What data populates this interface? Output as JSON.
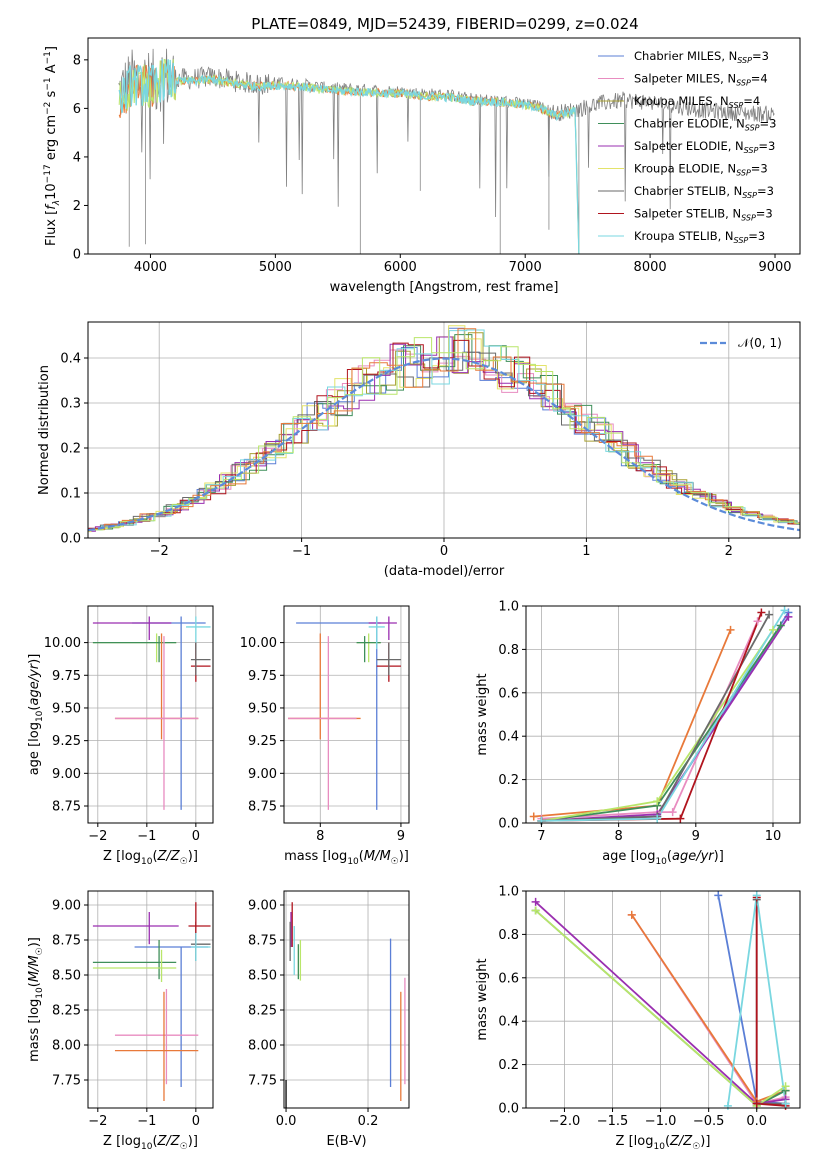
{
  "figure_title": "PLATE=0849, MJD=52439, FIBERID=0299, z=0.024",
  "colors": {
    "Chabrier MILES": "#5b7fd6",
    "Salpeter MILES": "#e88cc0",
    "Kroupa MILES": "#a8a032",
    "Chabrier ELODIE": "#3f8f5a",
    "Salpeter ELODIE": "#9a2fb0",
    "Kroupa ELODIE": "#e3e36a",
    "Chabrier STELIB": "#6a6a6a",
    "Salpeter STELIB": "#b0141e",
    "Kroupa STELIB": "#7ad7e0",
    "orange": "#e8793a",
    "lightgreen": "#b9e66a",
    "data_gray": "#808080",
    "gauss": "#5b8bd9"
  },
  "chart_data": [
    {
      "id": "spectrum",
      "type": "line",
      "title": "PLATE=0849, MJD=52439, FIBERID=0299, z=0.024",
      "xlabel": "wavelength [Angstrom, rest frame]",
      "ylabel": "Flux [f_λ10^-17 erg cm^-2 s^-1 A^-1]",
      "xlim": [
        3500,
        9200
      ],
      "ylim": [
        0,
        8.9
      ],
      "xticks": [
        4000,
        5000,
        6000,
        7000,
        8000,
        9000
      ],
      "yticks": [
        0,
        2,
        4,
        6,
        8
      ],
      "legend_position": "top-right",
      "legend": [
        {
          "label": "Chabrier MILES, N_SSP=3",
          "main": "Chabrier MILES, N",
          "sub": "SSP",
          "tail": "=3",
          "color": "#5b7fd6"
        },
        {
          "label": "Salpeter MILES, N_SSP=4",
          "main": "Salpeter MILES, N",
          "sub": "SSP",
          "tail": "=4",
          "color": "#e88cc0"
        },
        {
          "label": "Kroupa MILES, N_SSP=4",
          "main": "Kroupa MILES, N",
          "sub": "SSP",
          "tail": "=4",
          "color": "#a8a032"
        },
        {
          "label": "Chabrier ELODIE, N_SSP=3",
          "main": "Chabrier ELODIE, N",
          "sub": "SSP",
          "tail": "=3",
          "color": "#3f8f5a"
        },
        {
          "label": "Salpeter ELODIE, N_SSP=3",
          "main": "Salpeter ELODIE, N",
          "sub": "SSP",
          "tail": "=3",
          "color": "#9a2fb0"
        },
        {
          "label": "Kroupa ELODIE, N_SSP=3",
          "main": "Kroupa ELODIE, N",
          "sub": "SSP",
          "tail": "=3",
          "color": "#e3e36a"
        },
        {
          "label": "Chabrier STELIB, N_SSP=3",
          "main": "Chabrier STELIB, N",
          "sub": "SSP",
          "tail": "=3",
          "color": "#6a6a6a"
        },
        {
          "label": "Salpeter STELIB, N_SSP=3",
          "main": "Salpeter STELIB, N",
          "sub": "SSP",
          "tail": "=3",
          "color": "#b0141e"
        },
        {
          "label": "Kroupa STELIB, N_SSP=3",
          "main": "Kroupa STELIB, N",
          "sub": "SSP",
          "tail": "=3",
          "color": "#7ad7e0"
        }
      ],
      "series": [
        {
          "role": "data",
          "x": [
            3750,
            3850,
            4000,
            4100,
            4300,
            4500,
            4700,
            4861,
            5000,
            5200,
            5400,
            5600,
            5800,
            6000,
            6200,
            6400,
            6563,
            6700,
            6900,
            7100,
            7250,
            7400,
            7600,
            7800,
            8000,
            8200,
            8400,
            8600,
            8800,
            9000
          ],
          "y": [
            6.6,
            7.1,
            7.0,
            7.3,
            7.2,
            7.3,
            7.1,
            7.0,
            7.05,
            7.0,
            6.85,
            6.8,
            6.75,
            6.7,
            6.6,
            6.55,
            6.4,
            6.35,
            6.25,
            6.1,
            5.8,
            5.95,
            6.2,
            6.35,
            6.25,
            6.1,
            5.95,
            5.85,
            5.8,
            5.75
          ]
        },
        {
          "role": "model",
          "x": [
            3750,
            3850,
            4000,
            4100,
            4300,
            4500,
            4700,
            4861,
            5000,
            5200,
            5400,
            5600,
            5800,
            6000,
            6200,
            6400,
            6563,
            6700,
            6900,
            7100,
            7250,
            7400,
            7430
          ],
          "y": [
            6.3,
            7.0,
            6.9,
            7.2,
            7.1,
            7.2,
            7.0,
            6.9,
            6.95,
            6.9,
            6.75,
            6.7,
            6.65,
            6.6,
            6.5,
            6.45,
            6.3,
            6.3,
            6.2,
            6.05,
            5.7,
            5.9,
            0
          ]
        }
      ]
    },
    {
      "id": "residuals",
      "type": "line",
      "xlabel": "(data-model)/error",
      "ylabel": "Normed distribution",
      "xlim": [
        -2.5,
        2.5
      ],
      "ylim": [
        0,
        0.48
      ],
      "xticks": [
        -2,
        -1,
        0,
        1,
        2
      ],
      "yticks": [
        0.0,
        0.1,
        0.2,
        0.3,
        0.4
      ],
      "grid": true,
      "legend_position": "top-right",
      "legend_label": "𝒩(0, 1)",
      "series": [
        {
          "name": "𝒩(0, 1)",
          "kind": "gaussian",
          "mean": 0,
          "sigma": 1,
          "style": "dashed"
        }
      ]
    },
    {
      "id": "age_vs_Z",
      "type": "scatter",
      "xlabel": "Z [log10(Z/Z☉)]",
      "ylabel": "age [log10(age/yr)]",
      "xlim": [
        -2.2,
        0.35
      ],
      "ylim": [
        8.62,
        10.28
      ],
      "xticks": [
        -2,
        -1,
        0
      ],
      "yticks": [
        8.75,
        9.0,
        9.25,
        9.5,
        9.75,
        10.0
      ],
      "grid": true,
      "errorbars": [
        {
          "color": "#5b7fd6",
          "x": -0.3,
          "xmin": -1.3,
          "xmax": 0.2,
          "y": 10.15,
          "ymin": 8.72,
          "ymax": 10.2
        },
        {
          "color": "#9a2fb0",
          "x": -0.95,
          "xmin": -2.1,
          "xmax": -0.5,
          "y": 10.15,
          "ymin": 10.02,
          "ymax": 10.2
        },
        {
          "color": "#b9e66a",
          "x": -0.8,
          "xmin": -2.1,
          "xmax": -0.4,
          "y": 10.0,
          "ymin": 9.85,
          "ymax": 10.07
        },
        {
          "color": "#3f8f5a",
          "x": -0.75,
          "xmin": -2.1,
          "xmax": -0.4,
          "y": 10.0,
          "ymin": 9.85,
          "ymax": 10.05
        },
        {
          "color": "#e8793a",
          "x": -0.7,
          "xmin": -1.65,
          "xmax": 0.05,
          "y": 9.42,
          "ymin": 9.26,
          "ymax": 10.07
        },
        {
          "color": "#e88cc0",
          "x": -0.65,
          "xmin": -1.65,
          "xmax": 0.05,
          "y": 9.42,
          "ymin": 8.72,
          "ymax": 10.05
        },
        {
          "color": "#7ad7e0",
          "x": 0.0,
          "xmin": -0.2,
          "xmax": 0.3,
          "y": 10.12,
          "ymin": 9.95,
          "ymax": 10.2
        },
        {
          "color": "#b0141e",
          "x": 0.0,
          "xmin": -0.1,
          "xmax": 0.3,
          "y": 9.82,
          "ymin": 9.7,
          "ymax": 10.0
        },
        {
          "color": "#6a6a6a",
          "x": 0.0,
          "xmin": -0.1,
          "xmax": 0.3,
          "y": 9.87,
          "ymin": 9.75,
          "ymax": 10.0
        }
      ]
    },
    {
      "id": "age_vs_mass",
      "type": "scatter",
      "xlabel": "mass [log10(M/M☉)]",
      "ylabel": "",
      "xlim": [
        7.55,
        9.1
      ],
      "ylim": [
        8.62,
        10.28
      ],
      "xticks": [
        8,
        9
      ],
      "yticks": [
        8.75,
        9.0,
        9.25,
        9.5,
        9.75,
        10.0
      ],
      "grid": true,
      "errorbars": [
        {
          "color": "#5b7fd6",
          "x": 8.7,
          "xmin": 7.7,
          "xmax": 8.75,
          "y": 10.15,
          "ymin": 8.72,
          "ymax": 10.2
        },
        {
          "color": "#9a2fb0",
          "x": 8.85,
          "xmin": 8.6,
          "xmax": 8.95,
          "y": 10.15,
          "ymin": 10.02,
          "ymax": 10.2
        },
        {
          "color": "#b9e66a",
          "x": 8.6,
          "xmin": 8.45,
          "xmax": 8.75,
          "y": 10.0,
          "ymin": 9.85,
          "ymax": 10.07
        },
        {
          "color": "#3f8f5a",
          "x": 8.55,
          "xmin": 8.45,
          "xmax": 8.75,
          "y": 10.0,
          "ymin": 9.85,
          "ymax": 10.05
        },
        {
          "color": "#e8793a",
          "x": 8.0,
          "xmin": 7.6,
          "xmax": 8.5,
          "y": 9.42,
          "ymin": 9.26,
          "ymax": 10.07
        },
        {
          "color": "#e88cc0",
          "x": 8.1,
          "xmin": 7.6,
          "xmax": 8.45,
          "y": 9.42,
          "ymin": 8.72,
          "ymax": 10.05
        },
        {
          "color": "#7ad7e0",
          "x": 8.7,
          "xmin": 8.6,
          "xmax": 8.8,
          "y": 10.12,
          "ymin": 9.95,
          "ymax": 10.2
        },
        {
          "color": "#b0141e",
          "x": 8.85,
          "xmin": 8.7,
          "xmax": 9.0,
          "y": 9.82,
          "ymin": 9.7,
          "ymax": 10.0
        },
        {
          "color": "#6a6a6a",
          "x": 8.85,
          "xmin": 8.7,
          "xmax": 9.0,
          "y": 9.87,
          "ymin": 9.75,
          "ymax": 10.0
        }
      ]
    },
    {
      "id": "massweight_vs_age",
      "type": "line",
      "xlabel": "age [log10(age/yr)]",
      "ylabel": "mass weight",
      "xlim": [
        6.8,
        10.35
      ],
      "ylim": [
        0,
        1.0
      ],
      "xticks": [
        7,
        8,
        9,
        10
      ],
      "yticks": [
        0.0,
        0.2,
        0.4,
        0.6,
        0.8,
        1.0
      ],
      "grid": true,
      "series": [
        {
          "color": "#5b7fd6",
          "x": [
            7.0,
            8.5,
            10.2
          ],
          "y": [
            0.01,
            0.03,
            0.97
          ]
        },
        {
          "color": "#e88cc0",
          "x": [
            7.0,
            8.5,
            8.7,
            9.8
          ],
          "y": [
            0.02,
            0.05,
            0.05,
            0.93
          ]
        },
        {
          "color": "#e8793a",
          "x": [
            6.9,
            8.5,
            9.45
          ],
          "y": [
            0.03,
            0.08,
            0.89
          ]
        },
        {
          "color": "#3f8f5a",
          "x": [
            7.0,
            8.5,
            10.1
          ],
          "y": [
            0.01,
            0.08,
            0.91
          ]
        },
        {
          "color": "#9a2fb0",
          "x": [
            7.0,
            8.5,
            10.2
          ],
          "y": [
            0.01,
            0.04,
            0.95
          ]
        },
        {
          "color": "#b9e66a",
          "x": [
            7.0,
            8.5,
            10.0
          ],
          "y": [
            0.01,
            0.1,
            0.89
          ]
        },
        {
          "color": "#6a6a6a",
          "x": [
            7.0,
            8.5,
            9.95
          ],
          "y": [
            0.01,
            0.03,
            0.96
          ]
        },
        {
          "color": "#b0141e",
          "x": [
            7.0,
            8.8,
            9.85
          ],
          "y": [
            0.01,
            0.02,
            0.97
          ]
        },
        {
          "color": "#7ad7e0",
          "x": [
            7.0,
            8.5,
            10.15
          ],
          "y": [
            0.01,
            0.02,
            0.98
          ]
        }
      ]
    },
    {
      "id": "mass_vs_Z",
      "type": "scatter",
      "xlabel": "Z [log10(Z/Z☉)]",
      "ylabel": "mass [log10(M/M☉)]",
      "xlim": [
        -2.2,
        0.35
      ],
      "ylim": [
        7.55,
        9.1
      ],
      "xticks": [
        -2,
        -1,
        0
      ],
      "yticks": [
        7.75,
        8.0,
        8.25,
        8.5,
        8.75,
        9.0
      ],
      "grid": true,
      "errorbars": [
        {
          "color": "#9a2fb0",
          "x": -0.95,
          "xmin": -2.1,
          "xmax": -0.35,
          "y": 8.85,
          "ymin": 8.72,
          "ymax": 8.95
        },
        {
          "color": "#6a6a6a",
          "x": 0.0,
          "xmin": -0.1,
          "xmax": 0.3,
          "y": 8.72,
          "ymin": 8.6,
          "ymax": 8.88
        },
        {
          "color": "#5b7fd6",
          "x": -0.3,
          "xmin": -1.25,
          "xmax": 0.25,
          "y": 8.7,
          "ymin": 7.7,
          "ymax": 8.7
        },
        {
          "color": "#3f8f5a",
          "x": -0.75,
          "xmin": -2.1,
          "xmax": -0.4,
          "y": 8.59,
          "ymin": 8.47,
          "ymax": 8.75
        },
        {
          "color": "#b9e66a",
          "x": -0.7,
          "xmin": -2.1,
          "xmax": -0.4,
          "y": 8.55,
          "ymin": 8.45,
          "ymax": 8.68
        },
        {
          "color": "#b0141e",
          "x": 0.0,
          "xmin": -0.15,
          "xmax": 0.3,
          "y": 8.85,
          "ymin": 8.7,
          "ymax": 9.02
        },
        {
          "color": "#7ad7e0",
          "x": 0.0,
          "xmin": -0.1,
          "xmax": 0.3,
          "y": 8.7,
          "ymin": 8.6,
          "ymax": 8.8
        },
        {
          "color": "#e88cc0",
          "x": -0.6,
          "xmin": -1.65,
          "xmax": 0.05,
          "y": 8.07,
          "ymin": 7.72,
          "ymax": 8.4
        },
        {
          "color": "#e8793a",
          "x": -0.65,
          "xmin": -1.65,
          "xmax": 0.05,
          "y": 7.96,
          "ymin": 7.6,
          "ymax": 8.38
        }
      ]
    },
    {
      "id": "mass_vs_ebv",
      "type": "scatter",
      "xlabel": "E(B-V)",
      "ylabel": "",
      "xlim": [
        -0.005,
        0.3
      ],
      "ylim": [
        7.55,
        9.1
      ],
      "xticks": [
        0.0,
        0.2
      ],
      "yticks": [
        7.75,
        8.0,
        8.25,
        8.5,
        8.75,
        9.0
      ],
      "grid": true,
      "errorbars": [
        {
          "color": "#b0141e",
          "x": 0.015,
          "y": 8.85,
          "ymin": 8.7,
          "ymax": 9.02
        },
        {
          "color": "#9a2fb0",
          "x": 0.012,
          "y": 8.8,
          "ymin": 8.7,
          "ymax": 8.95
        },
        {
          "color": "#6a6a6a",
          "x": 0.01,
          "y": 8.75,
          "ymin": 8.6,
          "ymax": 8.88
        },
        {
          "color": "#7ad7e0",
          "x": 0.02,
          "y": 8.65,
          "ymin": 8.5,
          "ymax": 8.85
        },
        {
          "color": "#b9e66a",
          "x": 0.035,
          "y": 8.6,
          "ymin": 8.46,
          "ymax": 8.75
        },
        {
          "color": "#3f8f5a",
          "x": 0.03,
          "y": 8.6,
          "ymin": 8.47,
          "ymax": 8.72
        },
        {
          "color": "#5b7fd6",
          "x": 0.255,
          "y": 8.2,
          "ymin": 7.7,
          "ymax": 8.76
        },
        {
          "color": "#e8793a",
          "x": 0.28,
          "y": 8.0,
          "ymin": 7.6,
          "ymax": 8.38
        },
        {
          "color": "#e88cc0",
          "x": 0.29,
          "y": 8.1,
          "ymin": 7.72,
          "ymax": 8.48
        },
        {
          "color": "#000000",
          "x": 0.0,
          "y": 7.6,
          "ymin": 7.55,
          "ymax": 7.75
        }
      ]
    },
    {
      "id": "massweight_vs_Z",
      "type": "line",
      "xlabel": "Z [log10(Z/Z☉)]",
      "ylabel": "mass weight",
      "xlim": [
        -2.4,
        0.45
      ],
      "ylim": [
        0,
        1.0
      ],
      "xticks": [
        -2.0,
        -1.5,
        -1.0,
        -0.5,
        0.0
      ],
      "yticks": [
        0.0,
        0.2,
        0.4,
        0.6,
        0.8,
        1.0
      ],
      "grid": true,
      "series": [
        {
          "color": "#5b7fd6",
          "x": [
            -0.4,
            0.0,
            0.3
          ],
          "y": [
            0.98,
            0.03,
            0.02
          ]
        },
        {
          "color": "#e88cc0",
          "x": [
            -1.3,
            0.0,
            0.3
          ],
          "y": [
            0.89,
            0.02,
            0.05
          ]
        },
        {
          "color": "#e8793a",
          "x": [
            -1.3,
            0.0,
            0.3
          ],
          "y": [
            0.89,
            0.03,
            0.08
          ]
        },
        {
          "color": "#3f8f5a",
          "x": [
            -2.3,
            0.0,
            0.3
          ],
          "y": [
            0.91,
            0.01,
            0.08
          ]
        },
        {
          "color": "#9a2fb0",
          "x": [
            -2.3,
            0.0,
            0.3
          ],
          "y": [
            0.95,
            0.02,
            0.04
          ]
        },
        {
          "color": "#b9e66a",
          "x": [
            -2.3,
            0.0,
            0.3
          ],
          "y": [
            0.91,
            0.01,
            0.1
          ]
        },
        {
          "color": "#6a6a6a",
          "x": [
            0.0,
            0.0,
            0.3
          ],
          "y": [
            0.96,
            0.02,
            0.02
          ]
        },
        {
          "color": "#b0141e",
          "x": [
            0.0,
            0.0,
            0.3
          ],
          "y": [
            0.97,
            0.02,
            0.01
          ]
        },
        {
          "color": "#7ad7e0",
          "x": [
            -0.3,
            0.0,
            0.3
          ],
          "y": [
            0.01,
            0.98,
            0.02
          ]
        }
      ]
    }
  ]
}
